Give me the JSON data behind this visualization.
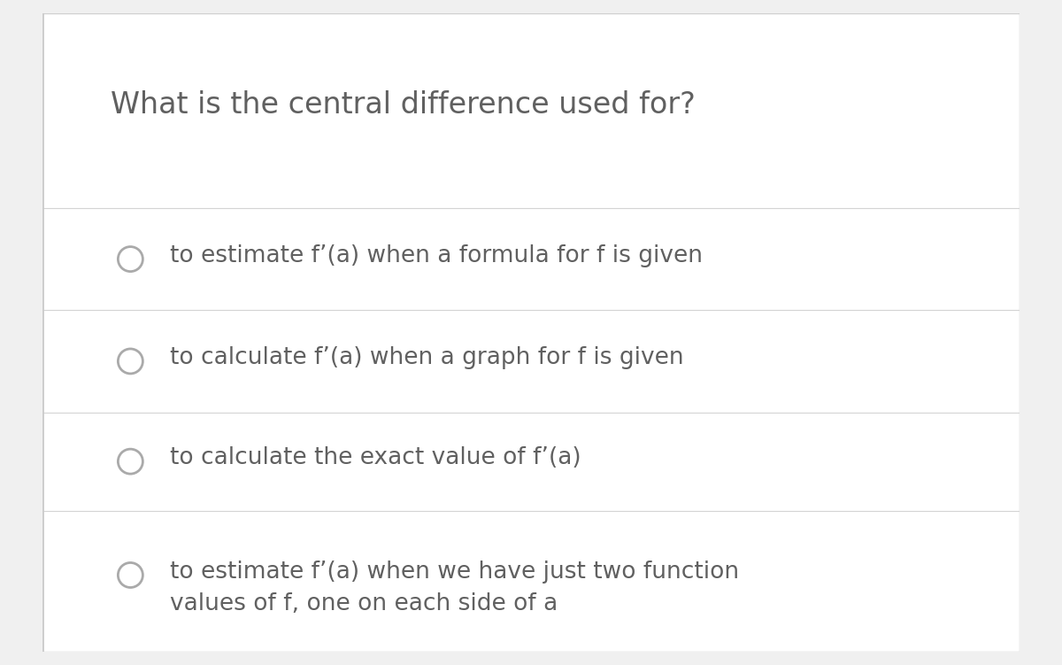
{
  "background_color": "#ffffff",
  "outer_bg": "#f0f0f0",
  "border_color": "#d0d0d0",
  "left_bar_color": "#cccccc",
  "divider_color": "#d4d4d4",
  "question": "What is the central difference used for?",
  "question_color": "#606060",
  "question_fontsize": 24,
  "options": [
    "to estimate f’(a) when a formula for f is given",
    "to calculate f’(a) when a graph for f is given",
    "to calculate the exact value of f’(a)",
    "to estimate f’(a) when we have just two function\nvalues of f, one on each side of a"
  ],
  "option_color": "#606060",
  "option_fontsize": 19,
  "circle_edge_color": "#aaaaaa",
  "circle_linewidth": 2.0,
  "fig_width": 12.0,
  "fig_height": 7.51
}
